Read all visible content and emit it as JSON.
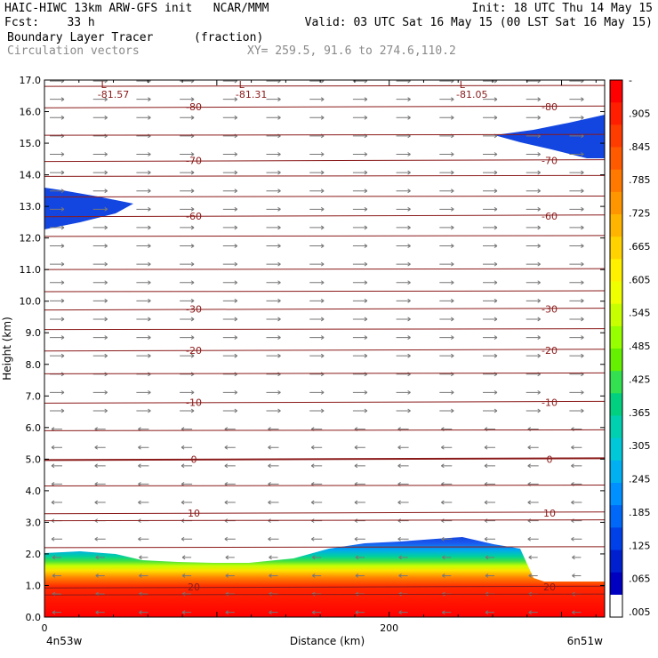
{
  "header": {
    "line1_left": "HAIC-HIWC 13km ARW-GFS init   NCAR/MMM",
    "line1_right": "Init: 18 UTC Thu 14 May 15",
    "line2_left": "Fcst:    33 h",
    "line2_right": "Valid: 03 UTC Sat 16 May 15 (00 LST Sat 16 May 15)",
    "line3_field": "Boundary Layer Tracer",
    "line3_units": "(fraction)",
    "line4_vectors": "Circulation vectors",
    "line4_xy": "XY= 259.5, 91.6 to 274.6,110.2"
  },
  "colors": {
    "contour": "#8b1a1a",
    "vector": "#777777",
    "high_blue": "#1346e0"
  },
  "chart_data": {
    "type": "heatmap",
    "title": "Boundary Layer Tracer",
    "units": "(fraction)",
    "xlabel": "Distance (km)",
    "ylabel": "Height (km)",
    "xlim": [
      0,
      325
    ],
    "ylim": [
      0,
      17
    ],
    "x_ticks": [
      {
        "v": 0,
        "t": "0"
      },
      {
        "v": 200,
        "t": "200"
      }
    ],
    "x_end_labels": {
      "left": "4n53w",
      "right": "6n51w"
    },
    "y_ticks": [
      "0.0",
      "1.0",
      "2.0",
      "3.0",
      "4.0",
      "5.0",
      "6.0",
      "7.0",
      "8.0",
      "9.0",
      "10.0",
      "11.0",
      "12.0",
      "13.0",
      "14.0",
      "15.0",
      "16.0",
      "17.0"
    ],
    "colorbar": {
      "labels": [
        "-",
        ".905",
        ".845",
        ".785",
        ".725",
        ".665",
        ".605",
        ".545",
        ".485",
        ".425",
        ".365",
        ".305",
        ".245",
        ".185",
        ".125",
        ".065",
        ".005"
      ],
      "colors": [
        "#ff0000",
        "#ff1e00",
        "#ff3c00",
        "#ff5a00",
        "#ff7800",
        "#ff9600",
        "#ffb400",
        "#ffd200",
        "#fff000",
        "#f0ff00",
        "#c8ff00",
        "#96ff00",
        "#64f000",
        "#32e050",
        "#00d080",
        "#00d0b0",
        "#00c8d8",
        "#00b0f0",
        "#0090ff",
        "#0068f8",
        "#0040e8",
        "#0020d0",
        "#0000c0",
        "#ffffff"
      ]
    },
    "temperature_contours": [
      {
        "label": "-80",
        "y": 16.15
      },
      {
        "label": "-70",
        "y": 14.45
      },
      {
        "label": "-60",
        "y": 12.7
      },
      {
        "label": "-30",
        "y": 9.75
      },
      {
        "label": "-20",
        "y": 8.45
      },
      {
        "label": "-10",
        "y": 6.8
      },
      {
        "label": "0",
        "y": 5.0
      },
      {
        "label": "10",
        "y": 3.3
      },
      {
        "label": "20",
        "y": 0.95
      }
    ],
    "other_contours_y": [
      0.7,
      2.2,
      3.05,
      4.15,
      5.9,
      7.7,
      9.1,
      10.3,
      11.0,
      12.05,
      13.3,
      13.95,
      15.25,
      16.8
    ],
    "tropopause_lows": [
      {
        "label": "-81.57",
        "x": 40
      },
      {
        "label": "-81.31",
        "x": 120
      },
      {
        "label": "-81.05",
        "x": 248
      }
    ]
  }
}
